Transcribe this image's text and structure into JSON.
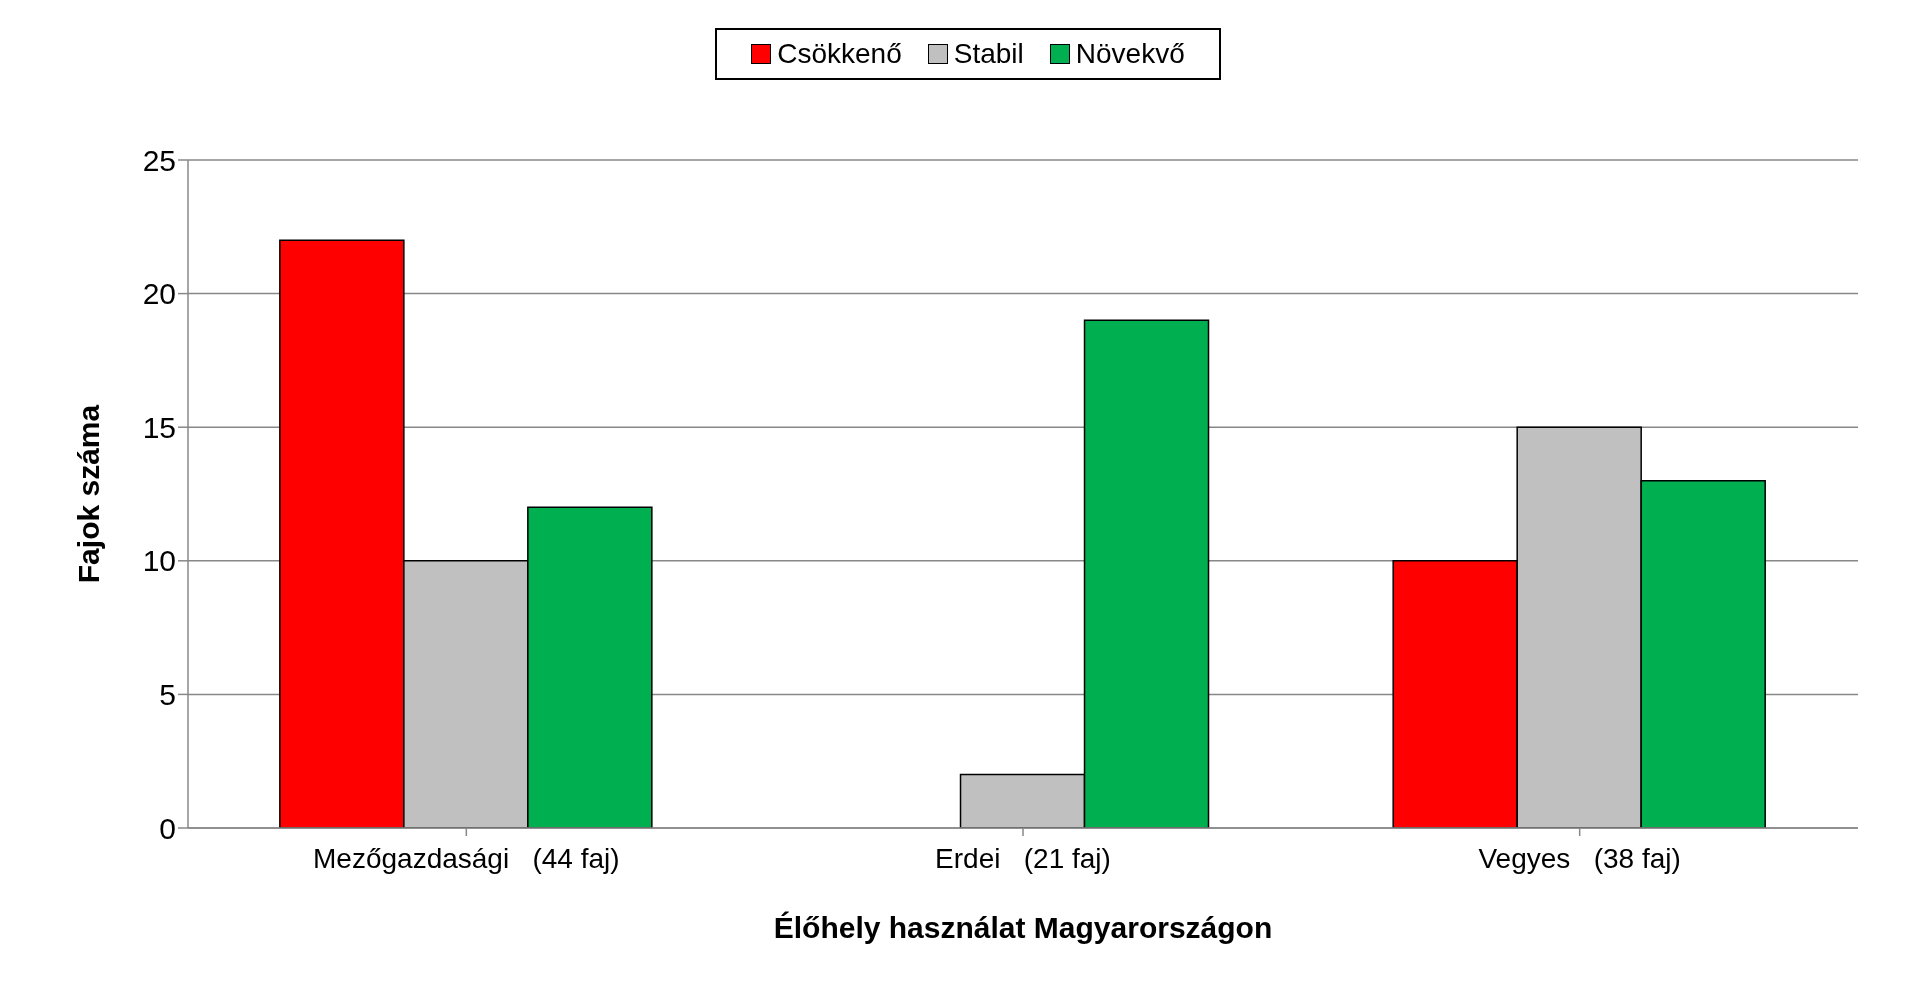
{
  "chart_data": {
    "type": "bar",
    "xlabel": "Élőhely használat Magyarországon",
    "ylabel": "Fajok száma",
    "categories": [
      "Mezőgazdasági   (44 faj)",
      "Erdei   (21 faj)",
      "Vegyes   (38 faj)"
    ],
    "series": [
      {
        "name": "Csökkenő",
        "color": "#ff0000",
        "values": [
          22,
          0,
          10
        ]
      },
      {
        "name": "Stabil",
        "color": "#c0c0c0",
        "values": [
          10,
          2,
          15
        ]
      },
      {
        "name": "Növekvő",
        "color": "#00b050",
        "values": [
          12,
          19,
          13
        ]
      }
    ],
    "ylim": [
      0,
      25
    ],
    "yticks": [
      0,
      5,
      10,
      15,
      20,
      25
    ],
    "grid": "y",
    "legend": "top"
  }
}
